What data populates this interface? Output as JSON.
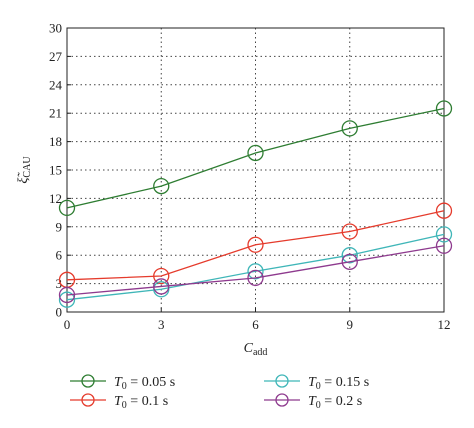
{
  "chart_data": {
    "type": "line",
    "x": [
      0,
      3,
      6,
      9,
      12
    ],
    "xticks": [
      "0",
      "3",
      "6",
      "9",
      "12"
    ],
    "yticks": [
      "0",
      "3",
      "6",
      "9",
      "12",
      "15",
      "18",
      "21",
      "24",
      "27",
      "30"
    ],
    "xlim": [
      0,
      12
    ],
    "ylim": [
      0,
      30
    ],
    "xlabel": {
      "symbol": "C",
      "sub": "add"
    },
    "ylabel": {
      "symbol": "ξ̃",
      "sub": "CAU"
    },
    "grid": true,
    "marker": "circle",
    "legend_position": "bottom",
    "series": [
      {
        "name": "T0 = 0.05 s",
        "label_symbol": "T",
        "label_sub": "0",
        "label_rest": " = 0.05 s",
        "color": "#2e7d32",
        "values": [
          11.0,
          13.3,
          16.8,
          19.4,
          21.5
        ]
      },
      {
        "name": "T0 = 0.1 s",
        "label_symbol": "T",
        "label_sub": "0",
        "label_rest": " = 0.1 s",
        "color": "#e53b2c",
        "values": [
          3.4,
          3.8,
          7.1,
          8.5,
          10.7
        ]
      },
      {
        "name": "T0 = 0.15 s",
        "label_symbol": "T",
        "label_sub": "0",
        "label_rest": " = 0.15 s",
        "color": "#3fb6b8",
        "values": [
          1.3,
          2.4,
          4.3,
          6.0,
          8.2
        ]
      },
      {
        "name": "T0 = 0.2 s",
        "label_symbol": "T",
        "label_sub": "0",
        "label_rest": " = 0.2 s",
        "color": "#8e3a8e",
        "values": [
          1.8,
          2.7,
          3.6,
          5.3,
          7.0
        ]
      }
    ]
  }
}
